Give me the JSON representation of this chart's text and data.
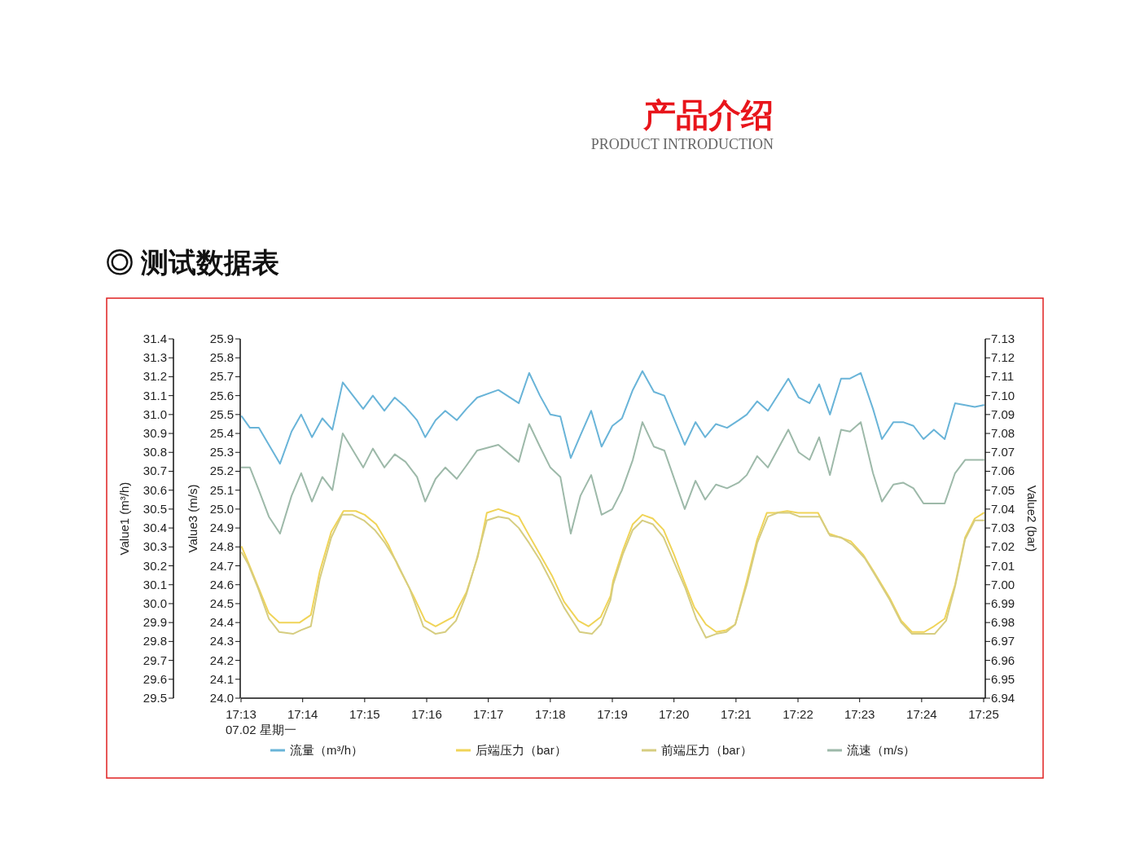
{
  "chart_data": {
    "type": "line",
    "title": "◎ 测试数据表",
    "annotations": [
      "产品介绍",
      "PRODUCT INTRODUCTION",
      "07.02 星期一"
    ],
    "ylabel": "Value1 (m³/h)",
    "y2label": "Value2 (bar)",
    "y3label": "Value3 (m/s)",
    "xlim": [
      17.2167,
      17.4167
    ],
    "xticks": [
      {
        "value": 17.2167,
        "label": "17:13"
      },
      {
        "value": 17.2333,
        "label": "17:14"
      },
      {
        "value": 17.25,
        "label": "17:15"
      },
      {
        "value": 17.2667,
        "label": "17:16"
      },
      {
        "value": 17.2833,
        "label": "17:17"
      },
      {
        "value": 17.3,
        "label": "17:18"
      },
      {
        "value": 17.3167,
        "label": "17:19"
      },
      {
        "value": 17.3333,
        "label": "17:20"
      },
      {
        "value": 17.35,
        "label": "17:21"
      },
      {
        "value": 17.3667,
        "label": "17:22"
      },
      {
        "value": 17.3833,
        "label": "17:23"
      },
      {
        "value": 17.4,
        "label": "17:24"
      },
      {
        "value": 17.4167,
        "label": "17:25"
      }
    ],
    "ylim": [
      29.5,
      31.4
    ],
    "yticks": [
      29.5,
      29.6,
      29.7,
      29.8,
      29.9,
      {
        "value": 30,
        "label": "30.0"
      },
      30.1,
      30.2,
      30.3,
      30.4,
      30.5,
      30.6,
      30.7,
      30.8,
      30.9,
      {
        "value": 31,
        "label": "31.0"
      },
      31.1,
      31.2,
      31.3,
      31.4
    ],
    "y3lim": [
      24.0,
      25.9
    ],
    "y3ticks": [
      {
        "value": 24,
        "label": "24.0"
      },
      24.1,
      24.2,
      24.3,
      24.4,
      24.5,
      24.6,
      24.7,
      24.8,
      24.9,
      {
        "value": 25,
        "label": "25.0"
      },
      25.1,
      25.2,
      25.3,
      25.4,
      25.5,
      25.6,
      25.7,
      25.8,
      25.9
    ],
    "y2lim": [
      6.94,
      7.13
    ],
    "y2ticks": [
      6.94,
      6.95,
      6.96,
      6.97,
      6.98,
      6.99,
      {
        "value": 7,
        "label": "7.00"
      },
      7.01,
      7.02,
      7.03,
      7.04,
      7.05,
      7.06,
      7.07,
      7.08,
      7.09,
      {
        "value": 7.1,
        "label": "7.10"
      },
      7.11,
      7.12,
      7.13
    ],
    "legend": "bottom",
    "grid": false,
    "series": [
      {
        "name": "流量（m³/h）",
        "color": "#69b4d8",
        "axis": "y",
        "x": [
          17.2169,
          17.2191,
          17.2215,
          17.2242,
          17.2272,
          17.2303,
          17.2329,
          17.2358,
          17.2386,
          17.2413,
          17.2441,
          17.2496,
          17.2522,
          17.2553,
          17.2581,
          17.261,
          17.2641,
          17.2663,
          17.2691,
          17.2717,
          17.2748,
          17.2774,
          17.2803,
          17.286,
          17.2915,
          17.2943,
          17.2972,
          17.3,
          17.3027,
          17.3055,
          17.3081,
          17.311,
          17.3138,
          17.3167,
          17.3193,
          17.3222,
          17.3248,
          17.3279,
          17.3307,
          17.3362,
          17.3391,
          17.3417,
          17.3446,
          17.3476,
          17.3507,
          17.3529,
          17.3557,
          17.3586,
          17.3641,
          17.3669,
          17.3698,
          17.3724,
          17.3753,
          17.3783,
          17.3807,
          17.3836,
          17.3869,
          17.3893,
          17.3924,
          17.395,
          17.3978,
          17.4005,
          17.4033,
          17.4062,
          17.409,
          17.4117,
          17.4143,
          17.4167
        ],
        "values": [
          30.99,
          30.93,
          30.93,
          30.84,
          30.74,
          30.91,
          31.0,
          30.88,
          30.98,
          30.92,
          31.17,
          31.03,
          31.1,
          31.02,
          31.09,
          31.04,
          30.97,
          30.88,
          30.97,
          31.02,
          30.97,
          31.03,
          31.09,
          31.13,
          31.06,
          31.22,
          31.1,
          31.0,
          30.99,
          30.77,
          30.89,
          31.02,
          30.83,
          30.94,
          30.98,
          31.13,
          31.23,
          31.12,
          31.1,
          30.84,
          30.96,
          30.88,
          30.95,
          30.93,
          30.97,
          31.0,
          31.07,
          31.02,
          31.19,
          31.09,
          31.06,
          31.16,
          31.0,
          31.19,
          31.19,
          31.22,
          31.03,
          30.87,
          30.96,
          30.96,
          30.94,
          30.87,
          30.92,
          30.87,
          31.06,
          31.05,
          31.04,
          31.05
        ]
      },
      {
        "name": "后端压力（bar）",
        "color": "#f0d458",
        "axis": "y2",
        "x": [
          17.2169,
          17.2186,
          17.2213,
          17.2242,
          17.227,
          17.2325,
          17.2355,
          17.2379,
          17.241,
          17.2443,
          17.2476,
          17.25,
          17.2531,
          17.2564,
          17.2592,
          17.2629,
          17.2663,
          17.2691,
          17.2739,
          17.2774,
          17.2805,
          17.2829,
          17.286,
          17.2888,
          17.2915,
          17.2943,
          17.2972,
          17.3004,
          17.3037,
          17.3075,
          17.3103,
          17.3136,
          17.3162,
          17.3169,
          17.3195,
          17.3222,
          17.3248,
          17.3276,
          17.3305,
          17.3333,
          17.336,
          17.3388,
          17.3419,
          17.3447,
          17.3474,
          17.3498,
          17.3529,
          17.3557,
          17.3583,
          17.3607,
          17.3638,
          17.3667,
          17.3721,
          17.375,
          17.3781,
          17.3809,
          17.3842,
          17.3871,
          17.3914,
          17.3945,
          17.3974,
          17.4007,
          17.4033,
          17.4062,
          17.409,
          17.4117,
          17.4143,
          17.4167
        ],
        "values": [
          7.02,
          7.012,
          6.999,
          6.985,
          6.98,
          6.98,
          6.984,
          7.007,
          7.028,
          7.039,
          7.039,
          7.037,
          7.032,
          7.021,
          7.009,
          6.995,
          6.981,
          6.978,
          6.983,
          6.996,
          7.015,
          7.038,
          7.04,
          7.038,
          7.036,
          7.026,
          7.016,
          7.005,
          6.991,
          6.981,
          6.978,
          6.983,
          6.994,
          7.002,
          7.018,
          7.032,
          7.037,
          7.035,
          7.029,
          7.016,
          7.002,
          6.988,
          6.979,
          6.975,
          6.976,
          6.979,
          7.002,
          7.024,
          7.038,
          7.038,
          7.039,
          7.038,
          7.038,
          7.027,
          7.025,
          7.023,
          7.016,
          7.007,
          6.993,
          6.981,
          6.975,
          6.975,
          6.978,
          6.982,
          7.0,
          7.025,
          7.035,
          7.038
        ]
      },
      {
        "name": "前端压力（bar）",
        "color": "#d6cd80",
        "axis": "y2",
        "x": [
          17.2169,
          17.2186,
          17.2213,
          17.2242,
          17.227,
          17.2307,
          17.2329,
          17.2355,
          17.2379,
          17.241,
          17.2439,
          17.2467,
          17.2498,
          17.2527,
          17.2555,
          17.2586,
          17.2621,
          17.2658,
          17.2691,
          17.2717,
          17.2746,
          17.2774,
          17.2801,
          17.2829,
          17.286,
          17.2888,
          17.2915,
          17.2943,
          17.2972,
          17.3004,
          17.3037,
          17.3079,
          17.3112,
          17.3136,
          17.3162,
          17.3169,
          17.3195,
          17.3222,
          17.3248,
          17.3276,
          17.3305,
          17.3333,
          17.3364,
          17.3393,
          17.3419,
          17.3447,
          17.3474,
          17.3498,
          17.3529,
          17.3557,
          17.3586,
          17.3612,
          17.3645,
          17.3671,
          17.3726,
          17.3753,
          17.3783,
          17.3814,
          17.3847,
          17.3875,
          17.3914,
          17.3945,
          17.3974,
          17.4007,
          17.4035,
          17.4066,
          17.409,
          17.4117,
          17.4143,
          17.4167
        ],
        "values": [
          7.017,
          7.011,
          6.998,
          6.982,
          6.975,
          6.974,
          6.976,
          6.978,
          7.003,
          7.025,
          7.037,
          7.037,
          7.034,
          7.029,
          7.022,
          7.012,
          6.998,
          6.978,
          6.974,
          6.975,
          6.981,
          6.995,
          7.013,
          7.034,
          7.036,
          7.035,
          7.03,
          7.022,
          7.013,
          7.001,
          6.988,
          6.975,
          6.974,
          6.979,
          6.992,
          7.0,
          7.016,
          7.029,
          7.034,
          7.032,
          7.025,
          7.012,
          6.998,
          6.982,
          6.972,
          6.974,
          6.975,
          6.979,
          7.0,
          7.022,
          7.036,
          7.038,
          7.038,
          7.036,
          7.036,
          7.026,
          7.025,
          7.021,
          7.014,
          7.005,
          6.992,
          6.98,
          6.974,
          6.974,
          6.974,
          6.981,
          6.999,
          7.024,
          7.034,
          7.034
        ]
      },
      {
        "name": "流速（m/s）",
        "color": "#9db9a9",
        "axis": "y3",
        "x": [
          17.2169,
          17.2191,
          17.2215,
          17.2242,
          17.2272,
          17.2303,
          17.2329,
          17.2358,
          17.2386,
          17.2413,
          17.2441,
          17.2496,
          17.2522,
          17.2553,
          17.2581,
          17.261,
          17.2641,
          17.2663,
          17.2691,
          17.2717,
          17.2748,
          17.2774,
          17.2803,
          17.286,
          17.2915,
          17.2943,
          17.2972,
          17.3,
          17.3027,
          17.3055,
          17.3081,
          17.311,
          17.3138,
          17.3167,
          17.3193,
          17.3222,
          17.3248,
          17.3279,
          17.3307,
          17.3362,
          17.3391,
          17.3417,
          17.3446,
          17.3476,
          17.3507,
          17.3529,
          17.3557,
          17.3586,
          17.3641,
          17.3669,
          17.3698,
          17.3724,
          17.3753,
          17.3783,
          17.3807,
          17.3836,
          17.3869,
          17.3893,
          17.3924,
          17.395,
          17.3978,
          17.4005,
          17.4033,
          17.4062,
          17.409,
          17.4117,
          17.4143,
          17.4167
        ],
        "values": [
          25.22,
          25.22,
          25.1,
          24.96,
          24.87,
          25.07,
          25.19,
          25.04,
          25.17,
          25.1,
          25.4,
          25.22,
          25.32,
          25.22,
          25.29,
          25.25,
          25.17,
          25.04,
          25.16,
          25.22,
          25.16,
          25.23,
          25.31,
          25.34,
          25.25,
          25.45,
          25.33,
          25.22,
          25.17,
          24.87,
          25.07,
          25.18,
          24.97,
          25.0,
          25.1,
          25.26,
          25.46,
          25.33,
          25.31,
          25.0,
          25.15,
          25.05,
          25.13,
          25.11,
          25.14,
          25.18,
          25.28,
          25.22,
          25.42,
          25.3,
          25.26,
          25.38,
          25.18,
          25.42,
          25.41,
          25.46,
          25.19,
          25.04,
          25.13,
          25.14,
          25.11,
          25.03,
          25.03,
          25.03,
          25.19,
          25.26,
          25.26,
          25.26
        ]
      }
    ]
  }
}
